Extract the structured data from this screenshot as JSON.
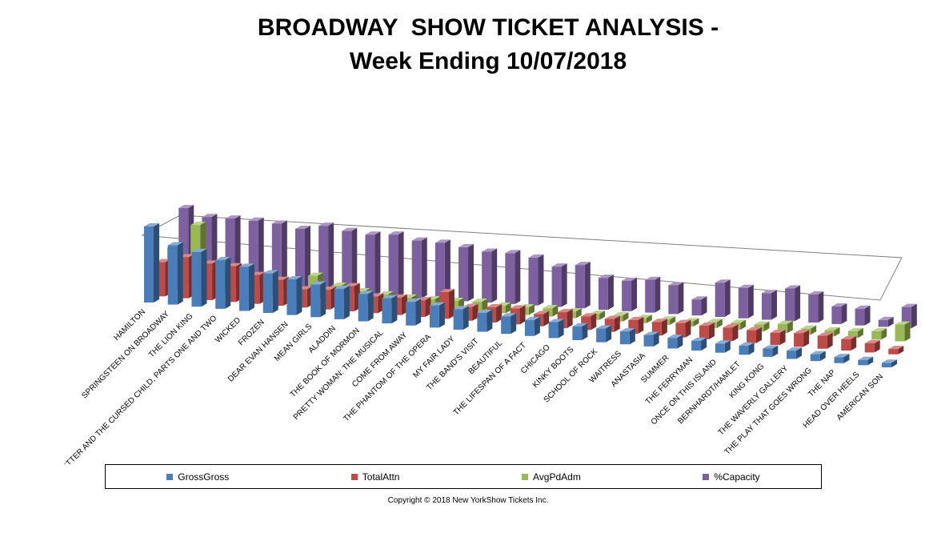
{
  "title_line1": "BROADWAY  SHOW TICKET ANALYSIS -",
  "title_line2": "Week Ending 10/07/2018",
  "copyright": "Copyright © 2018 New YorkShow Tickets Inc.",
  "colors": {
    "GrossGross": "#4a7ebb",
    "TotalAttn": "#be4b48",
    "AvgPdAdm": "#98b954",
    "%Capacity": "#7d60a0"
  },
  "chart_data": {
    "type": "bar",
    "title": "BROADWAY  SHOW TICKET ANALYSIS - Week Ending 10/07/2018",
    "categories": [
      "HAMILTON",
      "SPRINGSTEEN ON BROADWAY",
      "THE LION KING",
      "HARRY POTTER AND THE CURSED CHILD, PARTS ONE AND TWO",
      "WICKED",
      "FROZEN",
      "DEAR EVAN HANSEN",
      "MEAN GIRLS",
      "ALADDIN",
      "THE BOOK OF MORMON",
      "PRETTY WOMAN: THE MUSICAL",
      "COME FROM AWAY",
      "THE PHANTOM OF THE OPERA",
      "MY FAIR LADY",
      "THE BAND'S  VISIT",
      "BEAUTIFUL",
      "THE LIFESPAN OF A FACT",
      "CHICAGO",
      "KINKY BOOTS",
      "SCHOOL OF ROCK",
      "WAITRESS",
      "ANASTASIA",
      "SUMMER",
      "THE FERRYMAN",
      "ONCE ON THIS ISLAND",
      "BERNHARDT/HAMLET",
      "KING KONG",
      "THE WAVERLY GALLERY",
      "THE PLAY THAT GOES WRONG",
      "THE NAP",
      "HEAD OVER HEELS",
      "AMERICAN SON"
    ],
    "series": [
      {
        "name": "GrossGross",
        "values": [
          100,
          78,
          72,
          64,
          58,
          52,
          47,
          43,
          40,
          36,
          33,
          31,
          29,
          27,
          25,
          23,
          21,
          21,
          18,
          18,
          17,
          15,
          14,
          13,
          12,
          12,
          11,
          11,
          9,
          8,
          7,
          6
        ]
      },
      {
        "name": "TotalAttn",
        "values": [
          45,
          54,
          48,
          47,
          38,
          34,
          24,
          26,
          33,
          22,
          23,
          22,
          35,
          18,
          20,
          21,
          16,
          21,
          18,
          17,
          18,
          18,
          19,
          18,
          18,
          17,
          16,
          18,
          17,
          15,
          12,
          7
        ]
      },
      {
        "name": "AvgPdAdm",
        "values": [
          56,
          88,
          37,
          37,
          28,
          21,
          32,
          21,
          16,
          14,
          12,
          12,
          12,
          13,
          10,
          10,
          11,
          9,
          8,
          8,
          7,
          7,
          7,
          8,
          9,
          9,
          12,
          8,
          8,
          9,
          11,
          22
        ]
      },
      {
        "name": "%Capacity",
        "values": [
          100,
          90,
          90,
          89,
          87,
          82,
          88,
          83,
          80,
          82,
          76,
          75,
          71,
          67,
          67,
          63,
          53,
          57,
          42,
          40,
          43,
          38,
          21,
          45,
          40,
          35,
          43,
          37,
          23,
          22,
          9,
          28
        ]
      }
    ],
    "legend": "bottom",
    "grid": false
  }
}
